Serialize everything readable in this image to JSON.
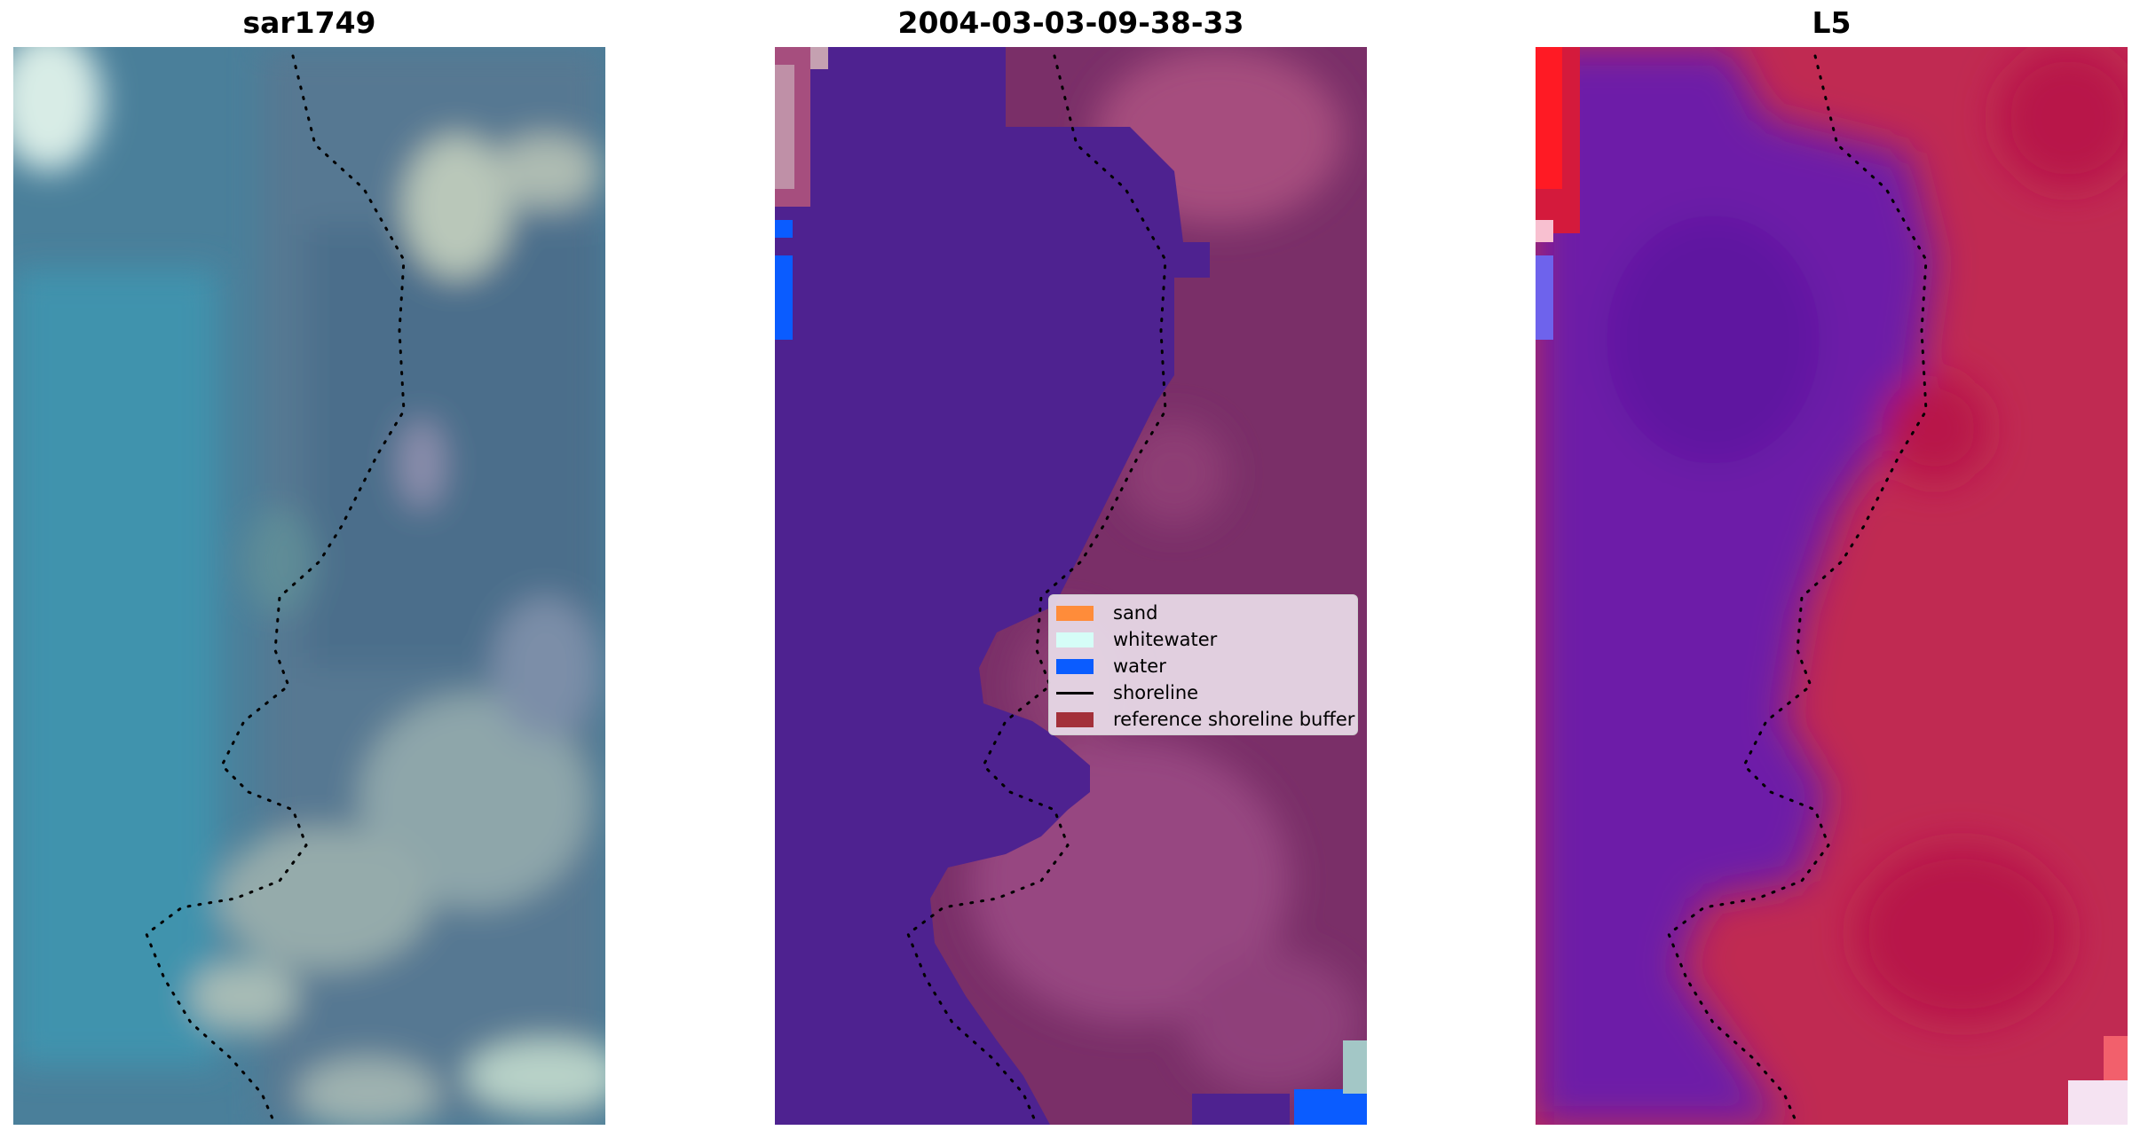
{
  "panels": [
    {
      "title": "sar1749"
    },
    {
      "title": "2004-03-03-09-38-33"
    },
    {
      "title": "L5"
    }
  ],
  "legend": {
    "items": [
      {
        "label": "sand",
        "type": "patch",
        "color": "#ff8c3a"
      },
      {
        "label": "whitewater",
        "type": "patch",
        "color": "#d5fdf7"
      },
      {
        "label": "water",
        "type": "patch",
        "color": "#0a5cff"
      },
      {
        "label": "shoreline",
        "type": "line",
        "color": "#000000"
      },
      {
        "label": "reference shoreline buffer",
        "type": "patch",
        "color": "#a3303a"
      }
    ]
  },
  "colors": {
    "rgb_water": "#3f7896",
    "rgb_land": "#5f7f97",
    "class_water": "#4e2290",
    "class_land": "#7a2f68",
    "ndwi_water": "#6d1da8",
    "ndwi_land": "#c02a52"
  }
}
